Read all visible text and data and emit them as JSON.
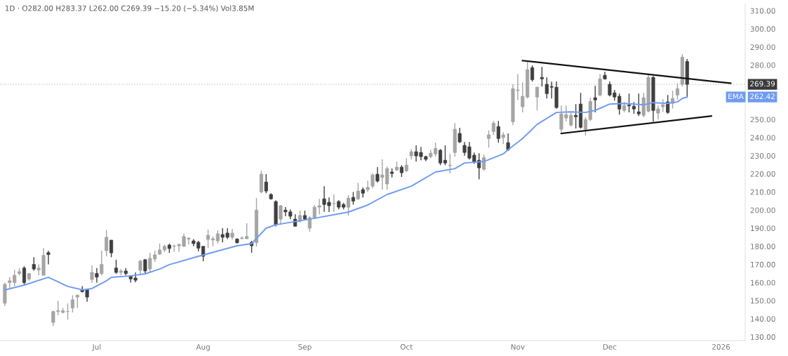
{
  "chart_data": {
    "type": "candlestick",
    "title": "1D · O282.00 H283.37 L262.00 C269.39 −15.20 (−5.34%) Vol3.85M",
    "categories": [
      null,
      null,
      null,
      null,
      null,
      null,
      null,
      null,
      null,
      null,
      null,
      null,
      null,
      null,
      null,
      null,
      null,
      null,
      null,
      "Jul",
      null,
      null,
      null,
      null,
      null,
      null,
      null,
      null,
      null,
      null,
      null,
      null,
      null,
      null,
      null,
      null,
      null,
      null,
      null,
      null,
      null,
      "Aug",
      null,
      null,
      null,
      null,
      null,
      null,
      null,
      null,
      null,
      null,
      null,
      null,
      null,
      null,
      null,
      null,
      null,
      null,
      null,
      null,
      "Sep",
      null,
      null,
      null,
      null,
      null,
      null,
      null,
      null,
      null,
      null,
      null,
      null,
      null,
      null,
      null,
      null,
      null,
      null,
      null,
      null,
      "Oct",
      null,
      null,
      null,
      null,
      null,
      null,
      null,
      null,
      null,
      null,
      null,
      null,
      null,
      null,
      null,
      null,
      null,
      null,
      null,
      null,
      null,
      null,
      "Nov",
      null,
      null,
      null,
      null,
      null,
      null,
      null,
      null,
      null,
      null,
      null,
      null,
      null,
      null,
      null,
      null,
      null,
      null,
      "Dec",
      null,
      null,
      null,
      null,
      null,
      null,
      null,
      null,
      null,
      null,
      null,
      null,
      null,
      null,
      null,
      null,
      null,
      null,
      null,
      null,
      null,
      null,
      "2026",
      null,
      null,
      null,
      null
    ],
    "ohlc": [
      [
        148.6,
        160,
        147,
        159
      ],
      [
        160,
        163,
        157,
        161
      ],
      [
        160,
        167,
        158,
        164
      ],
      [
        165,
        168,
        164,
        166
      ],
      [
        168,
        169,
        159,
        160
      ],
      [
        162,
        165,
        161,
        165
      ],
      [
        170,
        174,
        166.6,
        167.5
      ],
      [
        167,
        170,
        164,
        168
      ],
      [
        164,
        179,
        164,
        175
      ],
      [
        176.5,
        177.6,
        170,
        175.5
      ],
      [
        138,
        144.5,
        136,
        144
      ],
      [
        144,
        150,
        142,
        144.5
      ],
      [
        143.5,
        146,
        143,
        144.5
      ],
      [
        144,
        148.5,
        139.5,
        144
      ],
      [
        146,
        153,
        143.5,
        150.5
      ],
      [
        152,
        153.5,
        146,
        153
      ],
      [
        156,
        158,
        154.5,
        155
      ],
      [
        156,
        156.5,
        149.4,
        152
      ],
      [
        161.7,
        169.5,
        160,
        165.6
      ],
      [
        165,
        168,
        160,
        163
      ],
      [
        165,
        177.6,
        164,
        170
      ],
      [
        177.6,
        189,
        174.5,
        185
      ],
      [
        183.4,
        183.5,
        174,
        176.4
      ],
      [
        168,
        172.6,
        164.8,
        165.6
      ],
      [
        165.6,
        167.5,
        164,
        166.4
      ],
      [
        166.4,
        168,
        164,
        165
      ],
      [
        163.7,
        164,
        160,
        162
      ],
      [
        162.5,
        165.6,
        160.2,
        161.3
      ],
      [
        166.8,
        172.6,
        164.8,
        171.8
      ],
      [
        172.6,
        173,
        165,
        166.4
      ],
      [
        167.5,
        176.4,
        166,
        173.4
      ],
      [
        173,
        177.6,
        171.4,
        175.3
      ],
      [
        175.7,
        181.5,
        175.3,
        178
      ],
      [
        178,
        181,
        176.8,
        180
      ],
      [
        180.7,
        181.5,
        176.4,
        178.8
      ],
      [
        180,
        181,
        177,
        180.2
      ],
      [
        180.3,
        181.5,
        177,
        181
      ],
      [
        180,
        187,
        179.6,
        185.4
      ],
      [
        184,
        185,
        181,
        184.5
      ],
      [
        183,
        184,
        180,
        181.5
      ],
      [
        182.2,
        183,
        177.2,
        179
      ],
      [
        180,
        180,
        171.8,
        174.5
      ],
      [
        183.8,
        189.2,
        179,
        186.1
      ],
      [
        183.5,
        185.4,
        180,
        184.2
      ],
      [
        183,
        188.8,
        181.5,
        186.9
      ],
      [
        186.5,
        190,
        182.2,
        185
      ],
      [
        187.3,
        190,
        184,
        185
      ],
      [
        185,
        189.6,
        183.8,
        187.3
      ],
      [
        184,
        184.5,
        181.5,
        182
      ],
      [
        184.2,
        185.5,
        184,
        184.6
      ],
      [
        184.2,
        192.7,
        184,
        185.4
      ],
      [
        182.2,
        183,
        176.4,
        180.3
      ],
      [
        182,
        206.6,
        180,
        200
      ],
      [
        210,
        221.7,
        209.3,
        219.8
      ],
      [
        215.5,
        219.8,
        209.3,
        210.5
      ],
      [
        208.6,
        209.3,
        205.8,
        206.2
      ],
      [
        204.7,
        205.4,
        191,
        192
      ],
      [
        195,
        202.8,
        192,
        202.4
      ],
      [
        200,
        201.6,
        196.6,
        199
      ],
      [
        199,
        200.4,
        195,
        196.6
      ],
      [
        195,
        197.7,
        191,
        191.1
      ],
      [
        193.9,
        199.7,
        193,
        197
      ],
      [
        197,
        199.7,
        194.6,
        195
      ],
      [
        190,
        196.6,
        188,
        195.8
      ],
      [
        195.8,
        202.8,
        195,
        201.6
      ],
      [
        201.6,
        206.2,
        197.7,
        202.4
      ],
      [
        206.2,
        213.2,
        199,
        203.1
      ],
      [
        204.3,
        207,
        198.9,
        202.4
      ],
      [
        203.5,
        208.6,
        199,
        203.6
      ],
      [
        204.7,
        205.5,
        200.4,
        201.6
      ],
      [
        203.1,
        204,
        200.4,
        201.6
      ],
      [
        201.6,
        208.2,
        197,
        206.6
      ],
      [
        207,
        210,
        203,
        205
      ],
      [
        206.2,
        215,
        205.5,
        210.5
      ],
      [
        211.3,
        212.5,
        207,
        209.3
      ],
      [
        211.3,
        216.3,
        210,
        212.5
      ],
      [
        213.2,
        220.2,
        212,
        219.4
      ],
      [
        219.8,
        223.7,
        215.2,
        216
      ],
      [
        218,
        228,
        211.3,
        219.4
      ],
      [
        214.4,
        224,
        211.3,
        222.9
      ],
      [
        221,
        223,
        218,
        220.2
      ],
      [
        222.1,
        226.8,
        221.7,
        223.7
      ],
      [
        223.7,
        224.8,
        218.3,
        220.6
      ],
      [
        221.7,
        228.7,
        221,
        224.8
      ],
      [
        229.9,
        233.7,
        228,
        232.2
      ],
      [
        232.2,
        235.7,
        226.8,
        229.9
      ],
      [
        231.8,
        234.9,
        227.5,
        229.5
      ],
      [
        229.5,
        230,
        227,
        228
      ],
      [
        229.5,
        233.3,
        228.7,
        231.4
      ],
      [
        231,
        237.2,
        229.5,
        234
      ],
      [
        233,
        233.7,
        224.8,
        226
      ],
      [
        227.5,
        235.7,
        224.8,
        226
      ],
      [
        224.5,
        231,
        220.2,
        224.8
      ],
      [
        231.8,
        248,
        229.5,
        244.6
      ],
      [
        242.3,
        245.4,
        237,
        237.6
      ],
      [
        235.7,
        237.6,
        230,
        231.8
      ],
      [
        234.9,
        237.6,
        227.9,
        228.7
      ],
      [
        230.3,
        231.8,
        225.6,
        226.4
      ],
      [
        227.5,
        231.4,
        217,
        223.3
      ],
      [
        222.5,
        230.7,
        221.7,
        229
      ],
      [
        239.5,
        244,
        234.5,
        241.5
      ],
      [
        243.4,
        249.2,
        241.5,
        248
      ],
      [
        246.1,
        249.2,
        237.2,
        239.5
      ],
      [
        240,
        243,
        236.4,
        241.5
      ],
      [
        237.2,
        242.3,
        232.6,
        233.3
      ],
      [
        248.8,
        269.4,
        246.9,
        267
      ],
      [
        266,
        275.2,
        260.8,
        266.3
      ],
      [
        257,
        270.5,
        253.9,
        262.8
      ],
      [
        262.4,
        281.7,
        261.6,
        277.5
      ],
      [
        278.6,
        279.8,
        270.9,
        272
      ],
      [
        262.4,
        268.2,
        255,
        267.8
      ],
      [
        273.2,
        279,
        268.2,
        272.4
      ],
      [
        269.4,
        273.2,
        261.6,
        264.3
      ],
      [
        268.2,
        270.9,
        261.6,
        267.8
      ],
      [
        267.8,
        271,
        256,
        256.6
      ],
      [
        244.6,
        257.7,
        243,
        253.1
      ],
      [
        250.8,
        257.7,
        248.8,
        252.7
      ],
      [
        246.9,
        253.9,
        246.1,
        252.3
      ],
      [
        252.3,
        258.5,
        245,
        251.5
      ],
      [
        258.5,
        264.7,
        245,
        245.7
      ],
      [
        244.6,
        251.2,
        241.1,
        250
      ],
      [
        250,
        262,
        249.2,
        260
      ],
      [
        262,
        268.6,
        253.9,
        260.8
      ],
      [
        263.5,
        275.2,
        262.8,
        272.4
      ],
      [
        274.4,
        276.3,
        272,
        272.4
      ],
      [
        269.4,
        271,
        262.8,
        263.5
      ],
      [
        264.7,
        266.3,
        260.4,
        262.4
      ],
      [
        262.8,
        264.3,
        252.7,
        255.8
      ],
      [
        255,
        259.6,
        253.9,
        257.7
      ],
      [
        258,
        264.3,
        253.9,
        257.5
      ],
      [
        257.3,
        259.6,
        253.1,
        255.8
      ],
      [
        254.2,
        264.3,
        251.9,
        253.1
      ],
      [
        252.3,
        264.7,
        251.2,
        262
      ],
      [
        254.6,
        275.2,
        253.9,
        273.2
      ],
      [
        273.2,
        274,
        248.8,
        255
      ],
      [
        253.5,
        257.7,
        250,
        255.8
      ],
      [
        257,
        261.2,
        254.2,
        258.1
      ],
      [
        259.7,
        263.5,
        253.1,
        253.9
      ],
      [
        258.9,
        266,
        256,
        261.6
      ],
      [
        263.5,
        270,
        261,
        267
      ],
      [
        269.4,
        286,
        268.2,
        284.4
      ],
      [
        282,
        283.37,
        262,
        269.39
      ],
      null,
      null,
      null,
      null,
      null,
      null,
      null,
      null,
      null,
      null,
      null
    ],
    "colors": [
      "#a5a5a5",
      "#a5a5a5",
      "#a5a5a5",
      "#a5a5a5",
      "#3f3f3f",
      "#a5a5a5",
      "#3f3f3f",
      "#a5a5a5",
      "#a5a5a5",
      "#3f3f3f",
      "#a5a5a5",
      "#a5a5a5",
      "#a5a5a5",
      "#a5a5a5",
      "#a5a5a5",
      "#a5a5a5",
      "#3f3f3f",
      "#3f3f3f",
      "#a5a5a5",
      "#3f3f3f",
      "#a5a5a5",
      "#a5a5a5",
      "#3f3f3f",
      "#3f3f3f",
      "#a5a5a5",
      "#3f3f3f",
      "#3f3f3f",
      "#3f3f3f",
      "#a5a5a5",
      "#3f3f3f",
      "#a5a5a5",
      "#a5a5a5",
      "#a5a5a5",
      "#a5a5a5",
      "#3f3f3f",
      "#a5a5a5",
      "#a5a5a5",
      "#a5a5a5",
      "#a5a5a5",
      "#3f3f3f",
      "#3f3f3f",
      "#3f3f3f",
      "#a5a5a5",
      "#a5a5a5",
      "#a5a5a5",
      "#3f3f3f",
      "#3f3f3f",
      "#a5a5a5",
      "#3f3f3f",
      "#a5a5a5",
      "#a5a5a5",
      "#3f3f3f",
      "#a5a5a5",
      "#a5a5a5",
      "#3f3f3f",
      "#3f3f3f",
      "#3f3f3f",
      "#a5a5a5",
      "#3f3f3f",
      "#3f3f3f",
      "#3f3f3f",
      "#a5a5a5",
      "#3f3f3f",
      "#a5a5a5",
      "#a5a5a5",
      "#a5a5a5",
      "#3f3f3f",
      "#3f3f3f",
      "#a5a5a5",
      "#3f3f3f",
      "#3f3f3f",
      "#a5a5a5",
      "#3f3f3f",
      "#a5a5a5",
      "#3f3f3f",
      "#a5a5a5",
      "#a5a5a5",
      "#3f3f3f",
      "#a5a5a5",
      "#a5a5a5",
      "#3f3f3f",
      "#a5a5a5",
      "#3f3f3f",
      "#a5a5a5",
      "#a5a5a5",
      "#3f3f3f",
      "#3f3f3f",
      "#3f3f3f",
      "#a5a5a5",
      "#a5a5a5",
      "#3f3f3f",
      "#3f3f3f",
      "#a5a5a5",
      "#a5a5a5",
      "#3f3f3f",
      "#3f3f3f",
      "#3f3f3f",
      "#3f3f3f",
      "#3f3f3f",
      "#a5a5a5",
      "#a5a5a5",
      "#a5a5a5",
      "#3f3f3f",
      "#a5a5a5",
      "#3f3f3f",
      "#a5a5a5",
      "#a5a5a5",
      "#a5a5a5",
      "#a5a5a5",
      "#3f3f3f",
      "#a5a5a5",
      "#3f3f3f",
      "#3f3f3f",
      "#3f3f3f",
      "#3f3f3f",
      "#a5a5a5",
      "#a5a5a5",
      "#a5a5a5",
      "#3f3f3f",
      "#3f3f3f",
      "#a5a5a5",
      "#a5a5a5",
      "#3f3f3f",
      "#a5a5a5",
      "#3f3f3f",
      "#3f3f3f",
      "#3f3f3f",
      "#3f3f3f",
      "#a5a5a5",
      "#3f3f3f",
      "#3f3f3f",
      "#3f3f3f",
      "#a5a5a5",
      "#a5a5a5",
      "#3f3f3f",
      "#a5a5a5",
      "#a5a5a5",
      "#3f3f3f",
      "#a5a5a5",
      "#a5a5a5",
      "#a5a5a5",
      "#3f3f3f",
      null,
      null,
      null,
      null,
      null,
      null,
      null,
      null,
      null,
      null,
      null
    ],
    "series": [
      {
        "type": "line",
        "name": "EMA",
        "color": "#6f9cf2",
        "values": [
          155.9,
          null,
          null,
          null,
          158.6,
          null,
          null,
          null,
          null,
          162.9,
          null,
          null,
          null,
          157.9,
          null,
          null,
          156,
          null,
          156.7,
          null,
          null,
          161,
          162.9,
          null,
          null,
          null,
          163.7,
          null,
          null,
          164.8,
          null,
          null,
          167.5,
          null,
          169.9,
          null,
          null,
          null,
          null,
          null,
          174.5,
          null,
          null,
          null,
          null,
          null,
          null,
          null,
          180.3,
          null,
          null,
          181.5,
          null,
          null,
          190,
          null,
          191.9,
          null,
          null,
          null,
          null,
          null,
          null,
          195,
          null,
          null,
          null,
          null,
          null,
          null,
          null,
          198.9,
          null,
          null,
          null,
          202.8,
          null,
          null,
          null,
          208.6,
          null,
          null,
          null,
          null,
          213.2,
          null,
          null,
          null,
          null,
          221,
          null,
          null,
          null,
          222.9,
          null,
          226,
          null,
          null,
          null,
          226.8,
          null,
          null,
          null,
          231,
          233.3,
          null,
          null,
          239.5,
          null,
          null,
          247.3,
          null,
          null,
          null,
          253.9,
          null,
          null,
          254.2,
          null,
          null,
          253.9,
          null,
          255,
          null,
          null,
          258.5,
          null,
          null,
          258.9,
          null,
          null,
          null,
          258.1,
          null,
          259.3,
          null,
          null,
          258.9,
          null,
          259.7,
          261.6,
          262.42,
          null,
          null,
          null,
          null,
          null,
          null,
          null,
          null,
          null,
          null,
          null
        ]
      },
      {
        "type": "line",
        "color": "#111111",
        "values": [
          null,
          null,
          null,
          null,
          null,
          null,
          null,
          null,
          null,
          null,
          null,
          null,
          null,
          null,
          null,
          null,
          null,
          null,
          null,
          null,
          null,
          null,
          null,
          null,
          null,
          null,
          null,
          null,
          null,
          null,
          null,
          null,
          null,
          null,
          null,
          null,
          null,
          null,
          null,
          null,
          null,
          null,
          null,
          null,
          null,
          null,
          null,
          null,
          null,
          null,
          null,
          null,
          null,
          null,
          null,
          null,
          null,
          null,
          null,
          null,
          null,
          null,
          null,
          null,
          null,
          null,
          null,
          null,
          null,
          null,
          null,
          null,
          null,
          null,
          null,
          null,
          null,
          null,
          null,
          null,
          null,
          null,
          null,
          null,
          null,
          null,
          null,
          null,
          null,
          null,
          null,
          null,
          null,
          null,
          null,
          null,
          null,
          null,
          null,
          null,
          null,
          null,
          null,
          null,
          null,
          null,
          null,
          282.5,
          null,
          null,
          null,
          null,
          null,
          null,
          null,
          null,
          null,
          null,
          null,
          null,
          null,
          null,
          null,
          null,
          null,
          null,
          null,
          null,
          null,
          null,
          null,
          null,
          null,
          null,
          null,
          null,
          null,
          null,
          null,
          null,
          null,
          null,
          null,
          null,
          null,
          null,
          null,
          null,
          null,
          null,
          270,
          null,
          null
        ]
      },
      {
        "type": "line",
        "color": "#111111",
        "values": [
          null,
          null,
          null,
          null,
          null,
          null,
          null,
          null,
          null,
          null,
          null,
          null,
          null,
          null,
          null,
          null,
          null,
          null,
          null,
          null,
          null,
          null,
          null,
          null,
          null,
          null,
          null,
          null,
          null,
          null,
          null,
          null,
          null,
          null,
          null,
          null,
          null,
          null,
          null,
          null,
          null,
          null,
          null,
          null,
          null,
          null,
          null,
          null,
          null,
          null,
          null,
          null,
          null,
          null,
          null,
          null,
          null,
          null,
          null,
          null,
          null,
          null,
          null,
          null,
          null,
          null,
          null,
          null,
          null,
          null,
          null,
          null,
          null,
          null,
          null,
          null,
          null,
          null,
          null,
          null,
          null,
          null,
          null,
          null,
          null,
          null,
          null,
          null,
          null,
          null,
          null,
          null,
          null,
          null,
          null,
          null,
          null,
          null,
          null,
          null,
          null,
          null,
          null,
          null,
          null,
          null,
          null,
          null,
          null,
          null,
          null,
          null,
          null,
          null,
          null,
          242.3,
          null,
          null,
          null,
          null,
          null,
          null,
          null,
          null,
          null,
          null,
          null,
          null,
          null,
          null,
          null,
          null,
          null,
          null,
          null,
          null,
          null,
          null,
          null,
          null,
          null,
          null,
          null,
          null,
          null,
          null,
          251.9,
          null,
          null,
          null,
          null,
          null,
          null
        ]
      }
    ],
    "ref_lines": [
      {
        "axis": "y",
        "value": 269.39,
        "label": "269.39",
        "color": "#c4c4c4",
        "line_style": "dotted"
      }
    ],
    "annotations": [
      "262.42"
    ],
    "ylim": [
      128,
      314
    ],
    "yticks": [
      {
        "value": 130,
        "label": "130.00"
      },
      {
        "value": 140,
        "label": "140.00"
      },
      {
        "value": 150,
        "label": "150.00"
      },
      {
        "value": 160,
        "label": "160.00"
      },
      {
        "value": 170,
        "label": "170.00"
      },
      {
        "value": 180,
        "label": "180.00"
      },
      {
        "value": 190,
        "label": "190.00"
      },
      {
        "value": 200,
        "label": "200.00"
      },
      {
        "value": 210,
        "label": "210.00"
      },
      {
        "value": 220,
        "label": "220.00"
      },
      {
        "value": 230,
        "label": "230.00"
      },
      {
        "value": 240,
        "label": "240.00"
      },
      {
        "value": 250,
        "label": "250.00"
      },
      {
        "value": 280,
        "label": "280.00"
      },
      {
        "value": 290,
        "label": "290.00"
      },
      {
        "value": 300,
        "label": "300.00"
      },
      {
        "value": 310,
        "label": "310.00"
      }
    ]
  }
}
